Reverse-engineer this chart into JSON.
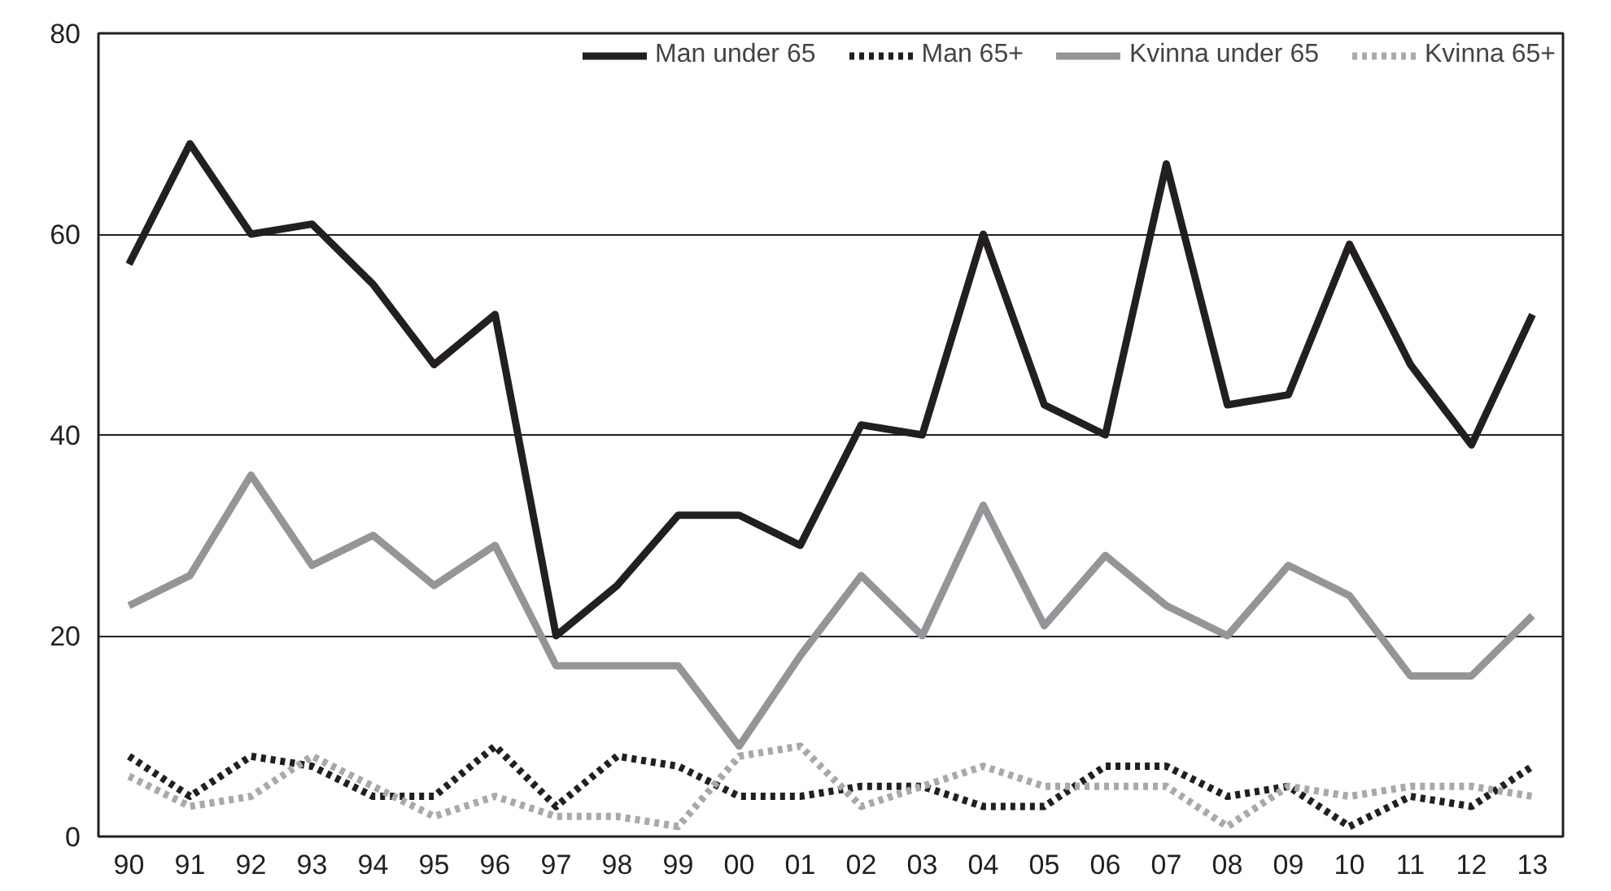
{
  "chart_data": {
    "type": "line",
    "categories": [
      "90",
      "91",
      "92",
      "93",
      "94",
      "95",
      "96",
      "97",
      "98",
      "99",
      "00",
      "01",
      "02",
      "03",
      "04",
      "05",
      "06",
      "07",
      "08",
      "09",
      "10",
      "11",
      "12",
      "13"
    ],
    "series": [
      {
        "name": "Man under 65",
        "color": "#231f20",
        "line_style": "solid",
        "values": [
          57,
          69,
          60,
          61,
          55,
          47,
          52,
          20,
          25,
          32,
          32,
          29,
          41,
          40,
          60,
          43,
          40,
          67,
          43,
          44,
          59,
          47,
          39,
          52
        ]
      },
      {
        "name": "Man 65+",
        "color": "#231f20",
        "line_style": "dotted",
        "values": [
          8,
          4,
          8,
          7,
          4,
          4,
          9,
          3,
          8,
          7,
          4,
          4,
          5,
          5,
          3,
          3,
          7,
          7,
          4,
          5,
          1,
          4,
          3,
          7
        ]
      },
      {
        "name": "Kvinna under 65",
        "color": "#939598",
        "line_style": "solid",
        "values": [
          23,
          26,
          36,
          27,
          30,
          25,
          29,
          17,
          17,
          17,
          9,
          18,
          26,
          20,
          33,
          21,
          28,
          23,
          20,
          27,
          24,
          16,
          16,
          22
        ]
      },
      {
        "name": "Kvinna 65+",
        "color": "#a7a9ac",
        "line_style": "dotted",
        "values": [
          6,
          3,
          4,
          8,
          5,
          2,
          4,
          2,
          2,
          1,
          8,
          9,
          3,
          5,
          7,
          5,
          5,
          5,
          1,
          5,
          4,
          5,
          5,
          4
        ]
      }
    ],
    "ylim": [
      0,
      80
    ],
    "yticks": [
      0,
      20,
      40,
      60,
      80
    ],
    "grid": "y",
    "legend": "top right"
  }
}
